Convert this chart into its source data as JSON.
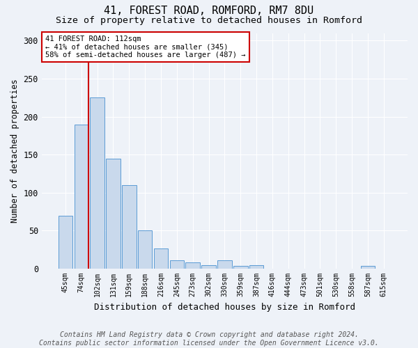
{
  "title1": "41, FOREST ROAD, ROMFORD, RM7 8DU",
  "title2": "Size of property relative to detached houses in Romford",
  "xlabel": "Distribution of detached houses by size in Romford",
  "ylabel": "Number of detached properties",
  "categories": [
    "45sqm",
    "74sqm",
    "102sqm",
    "131sqm",
    "159sqm",
    "188sqm",
    "216sqm",
    "245sqm",
    "273sqm",
    "302sqm",
    "330sqm",
    "359sqm",
    "387sqm",
    "416sqm",
    "444sqm",
    "473sqm",
    "501sqm",
    "530sqm",
    "558sqm",
    "587sqm",
    "615sqm"
  ],
  "values": [
    70,
    190,
    225,
    145,
    110,
    50,
    27,
    11,
    8,
    5,
    11,
    4,
    5,
    0,
    0,
    0,
    0,
    0,
    0,
    4,
    0
  ],
  "bar_color": "#c9d9ec",
  "bar_edge_color": "#5b9bd5",
  "ylim": [
    0,
    310
  ],
  "yticks": [
    0,
    50,
    100,
    150,
    200,
    250,
    300
  ],
  "annotation_line1": "41 FOREST ROAD: 112sqm",
  "annotation_line2": "← 41% of detached houses are smaller (345)",
  "annotation_line3": "58% of semi-detached houses are larger (487) →",
  "annotation_box_color": "#ffffff",
  "annotation_box_edge": "#cc0000",
  "property_line_color": "#cc0000",
  "footer_text": "Contains HM Land Registry data © Crown copyright and database right 2024.\nContains public sector information licensed under the Open Government Licence v3.0.",
  "background_color": "#eef2f8",
  "grid_color": "#ffffff",
  "title_fontsize": 11,
  "subtitle_fontsize": 9.5,
  "footer_fontsize": 7
}
